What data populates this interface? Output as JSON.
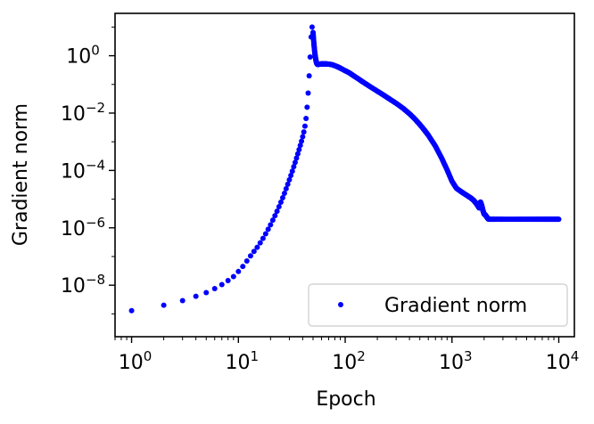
{
  "chart_data": {
    "type": "scatter",
    "xscale": "log",
    "yscale": "log",
    "xlim": [
      0.7,
      14000
    ],
    "ylim": [
      1.6e-10,
      30
    ],
    "xlabel": "Epoch",
    "ylabel": "Gradient norm",
    "x_ticks": [
      {
        "base": "10",
        "exp": "0",
        "value": 1
      },
      {
        "base": "10",
        "exp": "1",
        "value": 10
      },
      {
        "base": "10",
        "exp": "2",
        "value": 100
      },
      {
        "base": "10",
        "exp": "3",
        "value": 1000
      },
      {
        "base": "10",
        "exp": "4",
        "value": 10000
      }
    ],
    "y_ticks": [
      {
        "base": "10",
        "exp": "0",
        "value": 1
      },
      {
        "base": "10",
        "exp": "−2",
        "value": 0.01
      },
      {
        "base": "10",
        "exp": "−4",
        "value": 0.0001
      },
      {
        "base": "10",
        "exp": "−6",
        "value": 1e-06
      },
      {
        "base": "10",
        "exp": "−8",
        "value": 1e-08
      }
    ],
    "legend": {
      "position": "lower right",
      "entries": [
        "Gradient norm"
      ]
    },
    "grid": false,
    "marker_color": "#0000ff",
    "series": [
      {
        "name": "Gradient norm",
        "points": [
          [
            1,
            1.3e-09
          ],
          [
            2,
            2e-09
          ],
          [
            3,
            2.9e-09
          ],
          [
            4,
            4.1e-09
          ],
          [
            5,
            5.5e-09
          ],
          [
            6,
            7.6e-09
          ],
          [
            7,
            1.05e-08
          ],
          [
            8,
            1.45e-08
          ],
          [
            9,
            2e-08
          ],
          [
            10,
            3e-08
          ],
          [
            11,
            4.5e-08
          ],
          [
            12,
            7e-08
          ],
          [
            13,
            1.05e-07
          ],
          [
            14,
            1.5e-07
          ],
          [
            15,
            2.1e-07
          ],
          [
            16,
            3e-07
          ],
          [
            17,
            4.3e-07
          ],
          [
            18,
            6.2e-07
          ],
          [
            19,
            8.9e-07
          ],
          [
            20,
            1.28e-06
          ],
          [
            21,
            1.85e-06
          ],
          [
            22,
            2.65e-06
          ],
          [
            23,
            3.8e-06
          ],
          [
            24,
            5.45e-06
          ],
          [
            25,
            7.8e-06
          ],
          [
            26,
            1.12e-05
          ],
          [
            27,
            1.6e-05
          ],
          [
            28,
            2.3e-05
          ],
          [
            29,
            3.3e-05
          ],
          [
            30,
            4.7e-05
          ],
          [
            31,
            6.7e-05
          ],
          [
            32,
            9.5e-05
          ],
          [
            33,
            0.000135
          ],
          [
            34,
            0.00019
          ],
          [
            35,
            0.00027
          ],
          [
            36,
            0.00038
          ],
          [
            37,
            0.00053
          ],
          [
            38,
            0.00075
          ],
          [
            39,
            0.00105
          ],
          [
            40,
            0.0015
          ],
          [
            41,
            0.0022
          ],
          [
            42,
            0.0035
          ],
          [
            43,
            0.0065
          ],
          [
            44,
            0.016
          ],
          [
            45,
            0.05
          ],
          [
            46,
            0.2
          ],
          [
            47,
            0.9
          ],
          [
            48,
            4.5
          ],
          [
            49,
            10
          ],
          [
            50,
            6.5
          ],
          [
            51,
            2.5
          ],
          [
            52,
            1.2
          ],
          [
            53,
            0.75
          ],
          [
            54,
            0.55
          ],
          [
            55,
            0.5
          ],
          [
            56,
            0.5
          ],
          [
            58,
            0.51
          ],
          [
            60,
            0.52
          ],
          [
            63,
            0.52
          ],
          [
            66,
            0.52
          ],
          [
            70,
            0.51
          ],
          [
            75,
            0.49
          ],
          [
            80,
            0.45
          ],
          [
            85,
            0.41
          ],
          [
            90,
            0.37
          ],
          [
            100,
            0.3
          ],
          [
            110,
            0.25
          ],
          [
            120,
            0.2
          ],
          [
            135,
            0.15
          ],
          [
            150,
            0.115
          ],
          [
            170,
            0.085
          ],
          [
            200,
            0.058
          ],
          [
            230,
            0.042
          ],
          [
            260,
            0.031
          ],
          [
            300,
            0.022
          ],
          [
            350,
            0.0145
          ],
          [
            400,
            0.0095
          ],
          [
            450,
            0.0062
          ],
          [
            500,
            0.004
          ],
          [
            550,
            0.0026
          ],
          [
            600,
            0.0017
          ],
          [
            700,
            0.0007
          ],
          [
            800,
            0.00027
          ],
          [
            900,
            0.000105
          ],
          [
            1000,
            4.2e-05
          ],
          [
            1100,
            2.4e-05
          ],
          [
            1200,
            1.9e-05
          ],
          [
            1300,
            1.55e-05
          ],
          [
            1400,
            1.3e-05
          ],
          [
            1500,
            1.1e-05
          ],
          [
            1600,
            9e-06
          ],
          [
            1700,
            6.8e-06
          ],
          [
            1800,
            4.9e-06
          ],
          [
            1850,
            8e-06
          ],
          [
            1900,
            6e-06
          ],
          [
            1950,
            4e-06
          ],
          [
            2000,
            3e-06
          ],
          [
            2050,
            2.8e-06
          ],
          [
            2100,
            2.5e-06
          ],
          [
            2150,
            2.2e-06
          ],
          [
            2200,
            2e-06
          ],
          [
            2500,
            2e-06
          ],
          [
            3000,
            2e-06
          ],
          [
            4000,
            2e-06
          ],
          [
            5000,
            2e-06
          ],
          [
            6000,
            2e-06
          ],
          [
            7000,
            2e-06
          ],
          [
            8000,
            2e-06
          ],
          [
            9000,
            2e-06
          ],
          [
            10000,
            2e-06
          ]
        ]
      }
    ]
  }
}
